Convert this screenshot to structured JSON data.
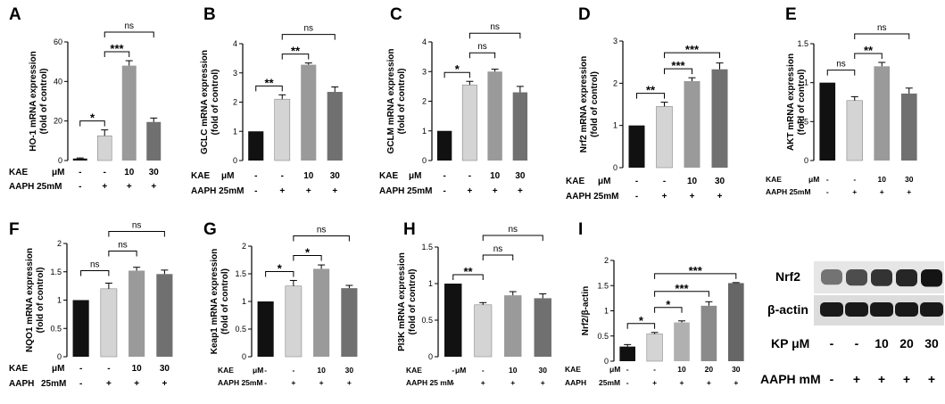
{
  "chart_data": [
    {
      "id": "A",
      "type": "bar",
      "ylabel": [
        "HO-1 mRNA expression",
        "(fold of control)"
      ],
      "ylim": [
        0,
        60
      ],
      "ticks": [
        0,
        20,
        40,
        60
      ],
      "values": [
        1,
        12.5,
        48,
        19.5
      ],
      "errors": [
        0.3,
        3,
        2.5,
        2
      ],
      "colors": [
        "#111111",
        "#d4d4d4",
        "#9a9a9a",
        "#707070"
      ],
      "conditions": {
        "row1_label": "KAE",
        "row1_unit": "μM",
        "row1": [
          "-",
          "-",
          "10",
          "30"
        ],
        "row2_label": "AAPH 25mM",
        "row2": [
          "-",
          "+",
          "+",
          "+"
        ]
      },
      "sig": [
        {
          "from": 0,
          "to": 1,
          "text": "*"
        },
        {
          "from": 1,
          "to": 2,
          "text": "***"
        },
        {
          "from": 1,
          "to": 3,
          "text": "ns"
        }
      ]
    },
    {
      "id": "B",
      "type": "bar",
      "ylabel": [
        "GCLC mRNA expression",
        "(fold of control)"
      ],
      "ylim": [
        0,
        4
      ],
      "ticks": [
        0,
        1,
        2,
        3,
        4
      ],
      "values": [
        1,
        2.1,
        3.28,
        2.35
      ],
      "errors": [
        0,
        0.15,
        0.06,
        0.17
      ],
      "colors": [
        "#111111",
        "#d4d4d4",
        "#9a9a9a",
        "#707070"
      ],
      "conditions": {
        "row1_label": "KAE",
        "row1_unit": "μM",
        "row1": [
          "-",
          "-",
          "10",
          "30"
        ],
        "row2_label": "AAPH 25mM",
        "row2": [
          "-",
          "+",
          "+",
          "+"
        ]
      },
      "sig": [
        {
          "from": 0,
          "to": 1,
          "text": "**"
        },
        {
          "from": 1,
          "to": 2,
          "text": "**"
        },
        {
          "from": 1,
          "to": 3,
          "text": "ns"
        }
      ]
    },
    {
      "id": "C",
      "type": "bar",
      "ylabel": [
        "GCLM mRNA expression",
        "(fold of control)"
      ],
      "ylim": [
        0,
        4
      ],
      "ticks": [
        0,
        1,
        2,
        3,
        4
      ],
      "values": [
        1,
        2.55,
        3.0,
        2.3
      ],
      "errors": [
        0,
        0.12,
        0.08,
        0.2
      ],
      "colors": [
        "#111111",
        "#d4d4d4",
        "#9a9a9a",
        "#707070"
      ],
      "conditions": {
        "row1_label": "KAE",
        "row1_unit": "μM",
        "row1": [
          "-",
          "-",
          "10",
          "30"
        ],
        "row2_label": "AAPH 25mM",
        "row2": [
          "-",
          "+",
          "+",
          "+"
        ]
      },
      "sig": [
        {
          "from": 0,
          "to": 1,
          "text": "*"
        },
        {
          "from": 1,
          "to": 2,
          "text": "ns"
        },
        {
          "from": 1,
          "to": 3,
          "text": "ns"
        }
      ]
    },
    {
      "id": "D",
      "type": "bar",
      "ylabel": [
        "Nrf2 mRNA expression",
        "(fold of control)"
      ],
      "ylim": [
        0,
        3
      ],
      "ticks": [
        0,
        1,
        2,
        3
      ],
      "values": [
        1,
        1.45,
        2.05,
        2.33
      ],
      "errors": [
        0,
        0.1,
        0.08,
        0.15
      ],
      "colors": [
        "#111111",
        "#d4d4d4",
        "#9a9a9a",
        "#707070"
      ],
      "conditions": {
        "row1_label": "KAE",
        "row1_unit": "μM",
        "row1": [
          "-",
          "-",
          "10",
          "30"
        ],
        "row2_label": "AAPH 25mM",
        "row2": [
          "-",
          "+",
          "+",
          "+"
        ]
      },
      "sig": [
        {
          "from": 0,
          "to": 1,
          "text": "**"
        },
        {
          "from": 1,
          "to": 2,
          "text": "***"
        },
        {
          "from": 1,
          "to": 3,
          "text": "***"
        }
      ]
    },
    {
      "id": "E",
      "type": "bar",
      "ylabel": [
        "AKT mRNA expression",
        "(fold of control)"
      ],
      "ylim": [
        0,
        1.5
      ],
      "ticks": [
        0.0,
        0.5,
        1.0,
        1.5
      ],
      "values": [
        1.0,
        0.77,
        1.21,
        0.86
      ],
      "errors": [
        0,
        0.05,
        0.05,
        0.07
      ],
      "colors": [
        "#111111",
        "#d4d4d4",
        "#9a9a9a",
        "#707070"
      ],
      "conditions": {
        "row1_label": "KAE",
        "row1_unit": "μM",
        "row1": [
          "-",
          "-",
          "10",
          "30"
        ],
        "row2_label": "AAPH 25mM",
        "row2": [
          "-",
          "+",
          "+",
          "+"
        ]
      },
      "sig": [
        {
          "from": 0,
          "to": 1,
          "text": "ns"
        },
        {
          "from": 1,
          "to": 2,
          "text": "**"
        },
        {
          "from": 1,
          "to": 3,
          "text": "ns"
        }
      ]
    },
    {
      "id": "F",
      "type": "bar",
      "ylabel": [
        "NQO1 mRNA expression",
        "(fold of control)"
      ],
      "ylim": [
        0,
        2.0
      ],
      "ticks": [
        0.0,
        0.5,
        1.0,
        1.5,
        2.0
      ],
      "values": [
        1.0,
        1.2,
        1.52,
        1.46
      ],
      "errors": [
        0,
        0.1,
        0.06,
        0.07
      ],
      "colors": [
        "#111111",
        "#d4d4d4",
        "#9a9a9a",
        "#707070"
      ],
      "conditions": {
        "row1_label": "KAE",
        "row1_unit": "μM",
        "row1": [
          "-",
          "-",
          "10",
          "30"
        ],
        "row2_label": "AAPH",
        "row2_unit": "25mM",
        "row2": [
          "-",
          "+",
          "+",
          "+"
        ]
      },
      "sig": [
        {
          "from": 0,
          "to": 1,
          "text": "ns"
        },
        {
          "from": 1,
          "to": 2,
          "text": "ns"
        },
        {
          "from": 1,
          "to": 3,
          "text": "ns"
        }
      ]
    },
    {
      "id": "G",
      "type": "bar",
      "ylabel": [
        "Keap1 mRNA expression",
        "(fold of control)"
      ],
      "ylim": [
        0,
        2.0
      ],
      "ticks": [
        0.0,
        0.5,
        1.0,
        1.5,
        2.0
      ],
      "values": [
        1.0,
        1.28,
        1.59,
        1.24
      ],
      "errors": [
        0,
        0.1,
        0.07,
        0.05
      ],
      "colors": [
        "#111111",
        "#d4d4d4",
        "#9a9a9a",
        "#707070"
      ],
      "conditions": {
        "row1_label": "KAE",
        "row1_unit": "μM",
        "row1": [
          "-",
          "-",
          "10",
          "30"
        ],
        "row2_label": "AAPH 25mM",
        "row2": [
          "-",
          "+",
          "+",
          "+"
        ]
      },
      "sig": [
        {
          "from": 0,
          "to": 1,
          "text": "*"
        },
        {
          "from": 1,
          "to": 2,
          "text": "*"
        },
        {
          "from": 1,
          "to": 3,
          "text": "ns"
        }
      ]
    },
    {
      "id": "H",
      "type": "bar",
      "ylabel": [
        "PI3K mRNA expression",
        "(fold of control)"
      ],
      "ylim": [
        0,
        1.5
      ],
      "ticks": [
        0.0,
        0.5,
        1.0,
        1.5
      ],
      "values": [
        1.0,
        0.71,
        0.84,
        0.8
      ],
      "errors": [
        0,
        0.03,
        0.05,
        0.06
      ],
      "colors": [
        "#111111",
        "#d4d4d4",
        "#9a9a9a",
        "#707070"
      ],
      "conditions": {
        "row1_label": "KAE",
        "row1_unit": "μM",
        "row1": [
          "-",
          "-",
          "10",
          "30"
        ],
        "row2_label": "AAPH 25 mM",
        "row2": [
          "-",
          "+",
          "+",
          "+"
        ]
      },
      "sig": [
        {
          "from": 0,
          "to": 1,
          "text": "**"
        },
        {
          "from": 1,
          "to": 2,
          "text": "ns"
        },
        {
          "from": 1,
          "to": 3,
          "text": "ns"
        }
      ]
    },
    {
      "id": "I",
      "type": "bar",
      "ylabel": [
        "Nrf2/β-actin"
      ],
      "ylim": [
        0,
        2.0
      ],
      "ticks": [
        0.0,
        0.5,
        1.0,
        1.5,
        2.0
      ],
      "values": [
        0.29,
        0.54,
        0.77,
        1.1,
        1.55
      ],
      "errors": [
        0.04,
        0.03,
        0.03,
        0.08,
        0.01
      ],
      "colors": [
        "#111111",
        "#d4d4d4",
        "#b0b0b0",
        "#8a8a8a",
        "#666666"
      ],
      "conditions": {
        "row1_label": "KAE",
        "row1_unit": "μM",
        "row1": [
          "-",
          "-",
          "10",
          "20",
          "30"
        ],
        "row2_label": "AAPH",
        "row2_unit": "25mM",
        "row2": [
          "-",
          "+",
          "+",
          "+",
          "+"
        ]
      },
      "sig": [
        {
          "from": 0,
          "to": 1,
          "text": "*"
        },
        {
          "from": 1,
          "to": 2,
          "text": "*"
        },
        {
          "from": 1,
          "to": 3,
          "text": "***"
        },
        {
          "from": 1,
          "to": 4,
          "text": "***"
        }
      ]
    }
  ],
  "blot": {
    "bands": [
      "Nrf2",
      "β-actin"
    ],
    "row1_label": "KP μM",
    "row1": [
      "-",
      "-",
      "10",
      "20",
      "30"
    ],
    "row2_label": "AAPH mM",
    "row2": [
      "-",
      "+",
      "+",
      "+",
      "+"
    ],
    "nrf2_intensity": [
      0.55,
      0.7,
      0.8,
      0.85,
      0.92
    ],
    "actin_intensity": [
      0.9,
      0.9,
      0.9,
      0.9,
      0.9
    ]
  }
}
